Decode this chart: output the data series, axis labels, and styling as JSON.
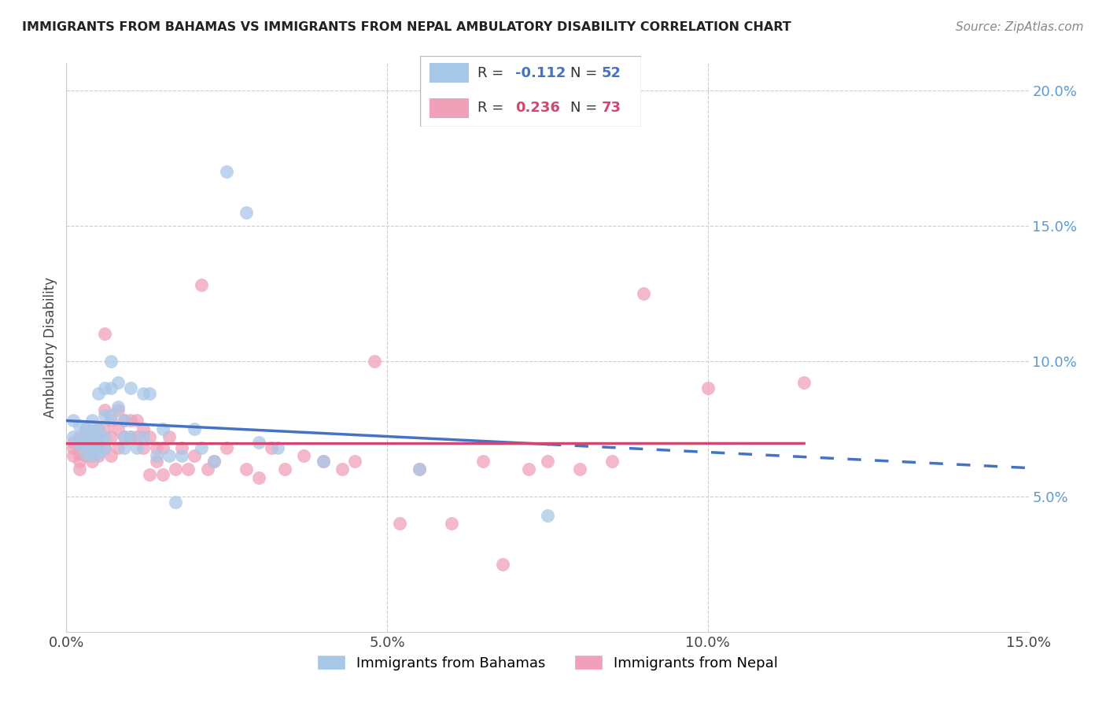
{
  "title": "IMMIGRANTS FROM BAHAMAS VS IMMIGRANTS FROM NEPAL AMBULATORY DISABILITY CORRELATION CHART",
  "source": "Source: ZipAtlas.com",
  "ylabel": "Ambulatory Disability",
  "xlim": [
    0.0,
    0.15
  ],
  "ylim": [
    0.0,
    0.21
  ],
  "xticks": [
    0.0,
    0.05,
    0.1,
    0.15
  ],
  "yticks": [
    0.05,
    0.1,
    0.15,
    0.2
  ],
  "bahamas_color": "#a8c8e8",
  "nepal_color": "#f0a0b8",
  "bahamas_line_color": "#4472c4",
  "nepal_line_color": "#d04870",
  "bahamas_label": "Immigrants from Bahamas",
  "nepal_label": "Immigrants from Nepal",
  "background_color": "#ffffff",
  "grid_color": "#cccccc",
  "bahamas_R": -0.112,
  "bahamas_N": 52,
  "nepal_R": 0.236,
  "nepal_N": 73,
  "bahamas_x": [
    0.001,
    0.001,
    0.002,
    0.002,
    0.002,
    0.003,
    0.003,
    0.003,
    0.003,
    0.004,
    0.004,
    0.004,
    0.004,
    0.004,
    0.005,
    0.005,
    0.005,
    0.005,
    0.005,
    0.006,
    0.006,
    0.006,
    0.006,
    0.007,
    0.007,
    0.007,
    0.008,
    0.008,
    0.009,
    0.009,
    0.009,
    0.01,
    0.01,
    0.011,
    0.012,
    0.012,
    0.013,
    0.014,
    0.015,
    0.016,
    0.017,
    0.018,
    0.02,
    0.021,
    0.023,
    0.025,
    0.028,
    0.03,
    0.033,
    0.04,
    0.055,
    0.075
  ],
  "bahamas_y": [
    0.078,
    0.072,
    0.076,
    0.071,
    0.069,
    0.075,
    0.072,
    0.069,
    0.066,
    0.078,
    0.074,
    0.072,
    0.068,
    0.065,
    0.088,
    0.075,
    0.072,
    0.069,
    0.066,
    0.09,
    0.08,
    0.072,
    0.068,
    0.1,
    0.09,
    0.08,
    0.092,
    0.083,
    0.078,
    0.072,
    0.068,
    0.09,
    0.072,
    0.068,
    0.088,
    0.072,
    0.088,
    0.065,
    0.075,
    0.065,
    0.048,
    0.065,
    0.075,
    0.068,
    0.063,
    0.17,
    0.155,
    0.07,
    0.068,
    0.063,
    0.06,
    0.043
  ],
  "nepal_x": [
    0.001,
    0.001,
    0.001,
    0.002,
    0.002,
    0.002,
    0.002,
    0.002,
    0.003,
    0.003,
    0.003,
    0.003,
    0.004,
    0.004,
    0.004,
    0.005,
    0.005,
    0.005,
    0.005,
    0.006,
    0.006,
    0.006,
    0.006,
    0.007,
    0.007,
    0.007,
    0.008,
    0.008,
    0.008,
    0.009,
    0.009,
    0.01,
    0.01,
    0.011,
    0.011,
    0.012,
    0.012,
    0.013,
    0.013,
    0.014,
    0.014,
    0.015,
    0.015,
    0.016,
    0.017,
    0.018,
    0.019,
    0.02,
    0.021,
    0.022,
    0.023,
    0.025,
    0.028,
    0.03,
    0.032,
    0.034,
    0.037,
    0.04,
    0.043,
    0.045,
    0.048,
    0.052,
    0.055,
    0.06,
    0.065,
    0.068,
    0.072,
    0.075,
    0.08,
    0.085,
    0.09,
    0.1,
    0.115
  ],
  "nepal_y": [
    0.07,
    0.068,
    0.065,
    0.072,
    0.069,
    0.066,
    0.063,
    0.06,
    0.075,
    0.072,
    0.069,
    0.065,
    0.072,
    0.068,
    0.063,
    0.075,
    0.072,
    0.069,
    0.065,
    0.11,
    0.082,
    0.075,
    0.068,
    0.078,
    0.072,
    0.065,
    0.082,
    0.075,
    0.068,
    0.078,
    0.072,
    0.078,
    0.072,
    0.078,
    0.072,
    0.075,
    0.068,
    0.058,
    0.072,
    0.068,
    0.063,
    0.058,
    0.068,
    0.072,
    0.06,
    0.068,
    0.06,
    0.065,
    0.128,
    0.06,
    0.063,
    0.068,
    0.06,
    0.057,
    0.068,
    0.06,
    0.065,
    0.063,
    0.06,
    0.063,
    0.1,
    0.04,
    0.06,
    0.04,
    0.063,
    0.025,
    0.06,
    0.063,
    0.06,
    0.063,
    0.125,
    0.09,
    0.092
  ]
}
